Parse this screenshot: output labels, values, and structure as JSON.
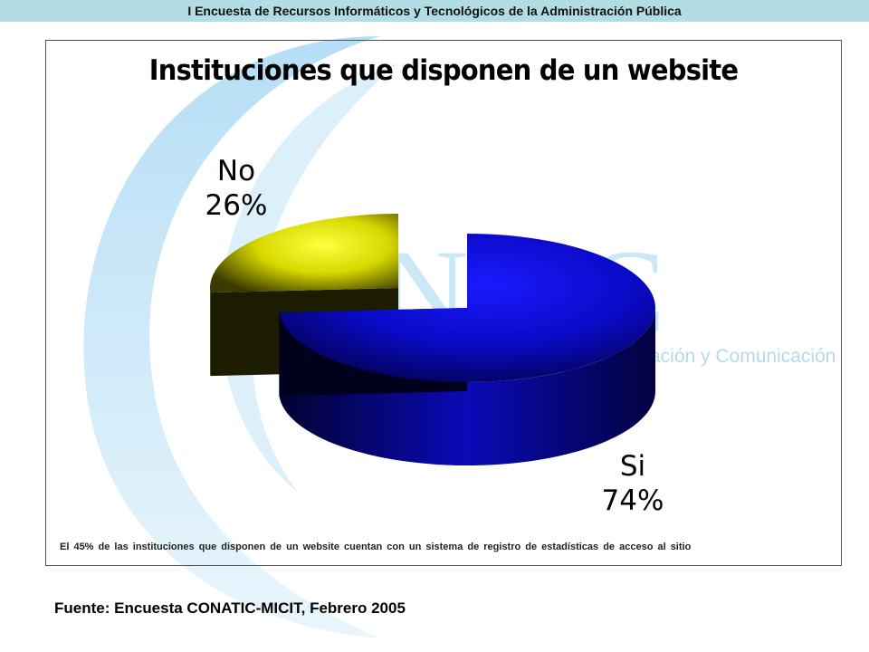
{
  "header": {
    "title": "I Encuesta de Recursos Informáticos y Tecnológicos de la Administración Pública"
  },
  "background": {
    "logo_text": "NTIC",
    "tagline_fragment": "ación y Comunicación",
    "color": "#cce8f7"
  },
  "chart_data": {
    "type": "pie",
    "title": "Instituciones que disponen de un website",
    "slices": [
      {
        "label": "Si",
        "percent_label": "74%",
        "value": 74,
        "color": "#1010e0"
      },
      {
        "label": "No",
        "percent_label": "26%",
        "value": 26,
        "color": "#e8e800"
      }
    ],
    "style": "3d-exploded"
  },
  "note": "El 45% de las instituciones que disponen de un website cuentan con un sistema de registro de estadísticas de acceso al sitio",
  "source": "Fuente: Encuesta CONATIC-MICIT, Febrero 2005"
}
